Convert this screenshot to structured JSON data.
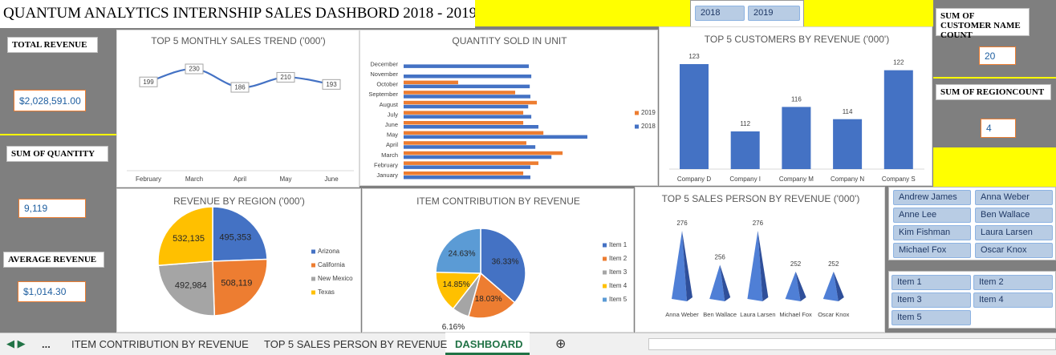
{
  "title": "QUANTUM ANALYTICS INTERNSHIP SALES DASHBORD 2018 - 2019",
  "year_slicer": [
    "2018",
    "2019"
  ],
  "kpis": [
    {
      "label": "TOTAL REVENUE",
      "value": "$2,028,591.00"
    },
    {
      "label": "SUM OF QUANTITY",
      "value": "9,119"
    },
    {
      "label": "AVERAGE REVENUE",
      "value": "$1,014.30"
    },
    {
      "label": "SUM OF CUSTOMER NAME COUNT",
      "value": "20"
    },
    {
      "label": "SUM OF REGIONCOUNT",
      "value": "4"
    }
  ],
  "name_slicer": [
    "Andrew James",
    "Anna Weber",
    "Anne Lee",
    "Ben Wallace",
    "Kim Fishman",
    "Laura Larsen",
    "Michael Fox",
    "Oscar Knox"
  ],
  "item_slicer": [
    "Item 1",
    "Item 2",
    "Item 3",
    "Item 4",
    "Item 5"
  ],
  "tabs": [
    "...",
    "ITEM CONTRIBUTION BY REVENUE",
    "TOP 5 SALES PERSON BY REVENUE",
    "DASHBOARD"
  ],
  "chart_data": [
    {
      "type": "line",
      "title": "TOP 5 MONTHLY SALES TREND ('000')",
      "categories": [
        "February",
        "March",
        "April",
        "May",
        "June"
      ],
      "values": [
        199,
        230,
        186,
        210,
        193
      ],
      "color": "#4472c4"
    },
    {
      "type": "bar",
      "orientation": "horizontal",
      "title": "QUANTITY SOLD IN UNIT",
      "categories": [
        "January",
        "February",
        "March",
        "April",
        "May",
        "June",
        "July",
        "August",
        "September",
        "October",
        "November",
        "December"
      ],
      "series": [
        {
          "name": "2019",
          "color": "#ed7d31",
          "values": [
            386,
            435,
            513,
            396,
            451,
            386,
            386,
            430,
            360,
            176,
            null,
            null
          ]
        },
        {
          "name": "2018",
          "color": "#4472c4",
          "values": [
            409,
            409,
            477,
            425,
            593,
            435,
            412,
            402,
            409,
            407,
            412,
            404
          ]
        }
      ]
    },
    {
      "type": "bar",
      "orientation": "vertical",
      "title": "TOP 5 CUSTOMERS BY REVENUE ('000')",
      "categories": [
        "Company D",
        "Company I",
        "Company M",
        "Company N",
        "Company S"
      ],
      "values": [
        123,
        112,
        116,
        114,
        122
      ],
      "color": "#4472c4"
    },
    {
      "type": "pie",
      "title": "REVENUE BY REGION ('000')",
      "categories": [
        "Arizona",
        "California",
        "New Mexico",
        "Texas"
      ],
      "values": [
        495353,
        508119,
        492984,
        532135
      ],
      "value_labels": [
        "495,353",
        "508,119",
        "492,984",
        "532,135"
      ],
      "colors": [
        "#4472c4",
        "#ed7d31",
        "#a5a5a5",
        "#ffc000"
      ]
    },
    {
      "type": "pie",
      "title": "ITEM CONTRIBUTION BY REVENUE",
      "categories": [
        "Item 1",
        "Item 2",
        "Item 3",
        "Item 4",
        "Item 5"
      ],
      "values": [
        36.33,
        18.03,
        6.16,
        14.85,
        24.63
      ],
      "value_labels": [
        "36.33%",
        "18.03%",
        "6.16%",
        "14.85%",
        "24.63%"
      ],
      "colors": [
        "#4472c4",
        "#ed7d31",
        "#a5a5a5",
        "#ffc000",
        "#5b9bd5"
      ]
    },
    {
      "type": "bar",
      "orientation": "vertical",
      "shape": "pyramid",
      "title": "TOP 5 SALES PERSON BY REVENUE ('000')",
      "categories": [
        "Anna Weber",
        "Ben Wallace",
        "Laura Larsen",
        "Michael Fox",
        "Oscar Knox"
      ],
      "values": [
        276,
        256,
        276,
        252,
        252
      ],
      "color": "#4472c4"
    }
  ]
}
